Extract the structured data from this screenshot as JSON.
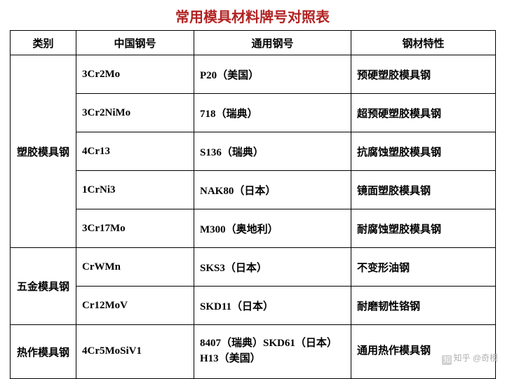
{
  "title": "常用模具材料牌号对照表",
  "title_color": "#b22222",
  "columns": [
    "类别",
    "中国钢号",
    "通用钢号",
    "钢材特性"
  ],
  "groups": [
    {
      "category": "塑胶模具钢",
      "rows": [
        {
          "cn": "3Cr2Mo",
          "general": "P20（美国）",
          "feature": "预硬塑胶模具钢"
        },
        {
          "cn": "3Cr2NiMo",
          "general": "718（瑞典）",
          "feature": "超预硬塑胶模具钢"
        },
        {
          "cn": "4Cr13",
          "general": "S136（瑞典）",
          "feature": "抗腐蚀塑胶模具钢"
        },
        {
          "cn": "1CrNi3",
          "general": "NAK80（日本）",
          "feature": "镜面塑胶模具钢"
        },
        {
          "cn": "3Cr17Mo",
          "general": "M300（奥地利）",
          "feature": "耐腐蚀塑胶模具钢"
        }
      ]
    },
    {
      "category": "五金模具钢",
      "rows": [
        {
          "cn": "CrWMn",
          "general": "SKS3（日本）",
          "feature": "不变形油钢"
        },
        {
          "cn": "Cr12MoV",
          "general": "SKD11（日本）",
          "feature": "耐磨韧性铬钢"
        }
      ]
    },
    {
      "category": "热作模具钢",
      "rows": [
        {
          "cn": "4Cr5MoSiV1",
          "general": "8407（瑞典）SKD61（日本）\nH13（美国）",
          "feature": "通用热作模具钢",
          "multiline": true
        }
      ]
    }
  ],
  "watermark": {
    "icon": "知",
    "site": "知乎",
    "author": "@奇模"
  },
  "background_color": "#ffffff",
  "border_color": "#000000"
}
